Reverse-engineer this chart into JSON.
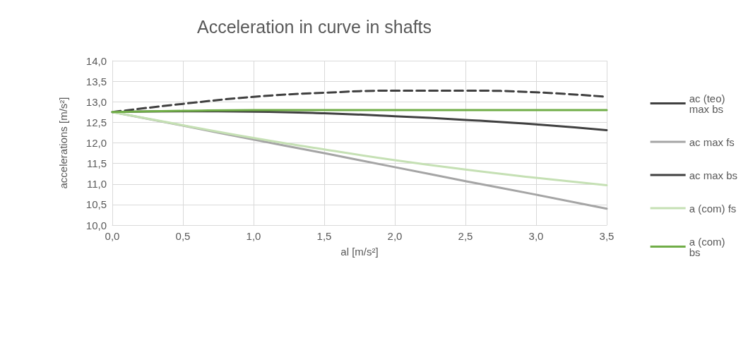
{
  "chart_data": {
    "type": "line",
    "title": "Acceleration in curve in shafts",
    "xlabel": "al [m/s²]",
    "ylabel": "accelerations [m/s²]",
    "x": [
      0,
      0.5,
      1,
      1.5,
      2,
      2.5,
      3,
      3.5
    ],
    "series": [
      {
        "name": "ac (teo) max bs",
        "color": "#404040",
        "line_style": "dashed",
        "values": [
          12.75,
          12.95,
          13.12,
          13.22,
          13.27,
          13.27,
          13.23,
          13.12
        ]
      },
      {
        "name": "ac max fs",
        "color": "#a5a5a5",
        "values": [
          12.75,
          12.42,
          12.08,
          11.75,
          11.41,
          11.07,
          10.74,
          10.4
        ]
      },
      {
        "name": "ac max bs",
        "color": "#404040",
        "values": [
          12.75,
          12.77,
          12.76,
          12.72,
          12.65,
          12.56,
          12.45,
          12.31
        ]
      },
      {
        "name": "a (com) fs",
        "color": "#c5e0b4",
        "values": [
          12.75,
          12.43,
          12.12,
          11.84,
          11.58,
          11.35,
          11.15,
          10.97
        ]
      },
      {
        "name": "a (com) bs",
        "color": "#70ad47",
        "values": [
          12.75,
          12.78,
          12.8,
          12.8,
          12.8,
          12.8,
          12.8,
          12.8
        ]
      }
    ],
    "xlim": [
      0,
      3.5
    ],
    "xticks": [
      {
        "value": 0,
        "label": "0,0"
      },
      {
        "value": 0.5,
        "label": "0,5"
      },
      {
        "value": 1,
        "label": "1,0"
      },
      {
        "value": 1.5,
        "label": "1,5"
      },
      {
        "value": 2,
        "label": "2,0"
      },
      {
        "value": 2.5,
        "label": "2,5"
      },
      {
        "value": 3,
        "label": "3,0"
      },
      {
        "value": 3.5,
        "label": "3,5"
      }
    ],
    "ylim": [
      10,
      14
    ],
    "yticks": [
      {
        "value": 10,
        "label": "10,0"
      },
      {
        "value": 10.5,
        "label": "10,5"
      },
      {
        "value": 11,
        "label": "11,0"
      },
      {
        "value": 11.5,
        "label": "11,5"
      },
      {
        "value": 12,
        "label": "12,0"
      },
      {
        "value": 12.5,
        "label": "12,5"
      },
      {
        "value": 13,
        "label": "13,0"
      },
      {
        "value": 13.5,
        "label": "13,5"
      },
      {
        "value": 14,
        "label": "14,0"
      }
    ],
    "grid": true,
    "legend": "right",
    "marker": "none",
    "line_style": "solid"
  }
}
